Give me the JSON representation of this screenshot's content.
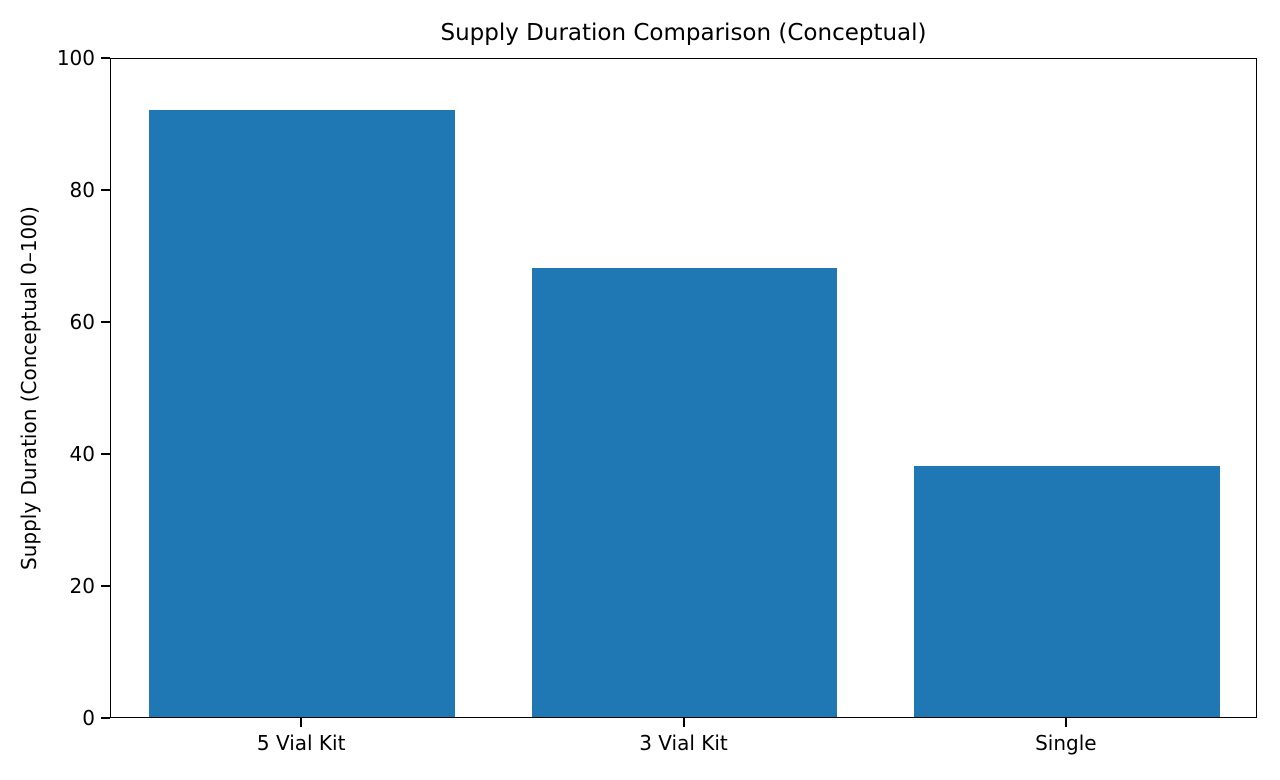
{
  "chart_data": {
    "type": "bar",
    "title": "Supply Duration Comparison (Conceptual)",
    "xlabel": "",
    "ylabel": "Supply Duration (Conceptual 0–100)",
    "categories": [
      "5 Vial Kit",
      "3 Vial Kit",
      "Single"
    ],
    "values": [
      92,
      68,
      38
    ],
    "yticks": [
      0,
      20,
      40,
      60,
      80,
      100
    ],
    "ylim": [
      0,
      100
    ],
    "bar_color": "#1f77b4",
    "bar_width_fraction": 0.8,
    "grid": false,
    "legend": "none",
    "spine_color": "#000000",
    "background_color": "#ffffff"
  }
}
